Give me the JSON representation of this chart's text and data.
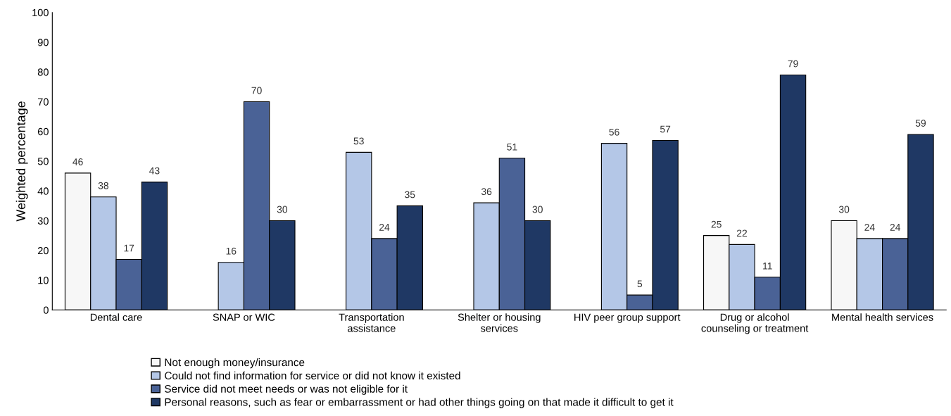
{
  "chart_data": {
    "type": "bar",
    "ylabel": "Weighted percentage",
    "categories": [
      "Dental care",
      "SNAP or WIC",
      "Transportation\nassistance",
      "Shelter or housing\nservices",
      "HIV peer group support",
      "Drug or alcohol\ncounseling or treatment",
      "Mental health services"
    ],
    "series": [
      {
        "name": "Not enough money/insurance",
        "color": "#f7f7f7",
        "values": [
          46,
          null,
          null,
          null,
          null,
          25,
          30
        ]
      },
      {
        "name": "Could not find information for service or did not know it existed",
        "color": "#b4c7e7",
        "values": [
          38,
          16,
          53,
          36,
          56,
          22,
          24
        ]
      },
      {
        "name": "Service did not meet needs or was not eligible for it",
        "color": "#4a6296",
        "values": [
          17,
          70,
          24,
          51,
          5,
          11,
          24
        ]
      },
      {
        "name": "Personal reasons, such as fear or embarrassment or had other things going on that made it difficult to get it",
        "color": "#1f3864",
        "values": [
          43,
          30,
          35,
          30,
          57,
          79,
          59
        ]
      }
    ],
    "ylim": [
      0,
      100
    ],
    "yticks": [
      0,
      10,
      20,
      30,
      40,
      50,
      60,
      70,
      80,
      90,
      100
    ],
    "data_labels": true,
    "grid": false,
    "legend": "bottom"
  }
}
